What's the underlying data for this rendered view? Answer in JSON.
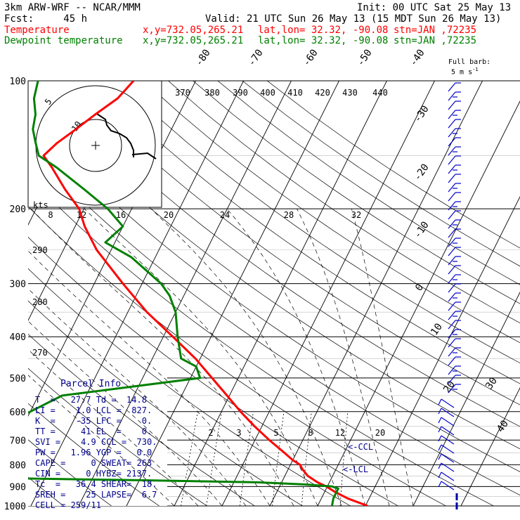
{
  "header": {
    "model": "3km ARW-WRF -- NCAR/MMM",
    "init": "Init: 00 UTC Sat 25 May 13",
    "fcst": "Fcst:     45 h",
    "valid": "Valid: 21 UTC Sun 26 May 13 (15 MDT Sun 26 May 13)",
    "temp_label": "Temperature",
    "dew_label": "Dewpoint temperature",
    "coord": "x,y=732.05,265.21",
    "latlon": "lat,lon= 32.32, -90.08",
    "stn": "stn=JAN ,72235",
    "barb_legend_1": "Full barb:",
    "barb_legend_2": "5 m s"
  },
  "colors": {
    "temperature": "#ff0000",
    "dewpoint": "#008000",
    "parcel_text": "#00008b",
    "barbs": "#0000cd",
    "grid": "#000000"
  },
  "chart_data": {
    "type": "skew-T log-P sounding",
    "pressure_levels": [
      100,
      200,
      300,
      400,
      500,
      600,
      700,
      800,
      900,
      1000
    ],
    "isotherm_labels": [
      "-80",
      "-70",
      "-60",
      "-50",
      "-40",
      "-30",
      "-20",
      "-10",
      "0",
      "10",
      "20",
      "30",
      "40"
    ],
    "theta_labels": [
      "370",
      "380",
      "390",
      "400",
      "410",
      "420",
      "430",
      "440"
    ],
    "theta_left_labels": [
      "290",
      "280",
      "270"
    ],
    "hodograph_speed_labels": [
      "8",
      "12",
      "16",
      "20",
      "24",
      "28",
      "32"
    ],
    "hodograph_unit": "kts",
    "hodograph_ring_labels": [
      "5",
      "10"
    ],
    "mixing_ratio_labels": [
      "2",
      "3",
      "5",
      "8",
      "12",
      "20"
    ],
    "ccl_label": "<-CCL",
    "lcl_label": "<-LCL",
    "series": [
      {
        "name": "Temperature",
        "p": [
          1000,
          960,
          925,
          900,
          880,
          850,
          820,
          800,
          780,
          750,
          700,
          650,
          600,
          550,
          500,
          450,
          400,
          350,
          300,
          250,
          220,
          200,
          180,
          160,
          150,
          140,
          130,
          120,
          110,
          100
        ],
        "t": [
          30.5,
          25.5,
          22.0,
          19.8,
          17.5,
          14.8,
          13.0,
          12.0,
          10.0,
          7.5,
          3.0,
          -1.5,
          -6.0,
          -10.5,
          -15.5,
          -21.0,
          -28.0,
          -36.0,
          -44.0,
          -53.0,
          -58.0,
          -61.0,
          -66.0,
          -71.0,
          -74.0,
          -72.5,
          -70.0,
          -67.5,
          -64.5,
          -63.0
        ]
      },
      {
        "name": "Dewpoint temperature",
        "p": [
          1000,
          960,
          925,
          910,
          900,
          890,
          880,
          870,
          860,
          850,
          820,
          800,
          780,
          750,
          700,
          650,
          600,
          550,
          500,
          470,
          450,
          400,
          350,
          320,
          300,
          260,
          240,
          220,
          200,
          180,
          160,
          150,
          140,
          130,
          120,
          110,
          100
        ],
        "t": [
          23.0,
          22.5,
          22.5,
          22.5,
          21.0,
          15.0,
          5.0,
          -20.0,
          -50.0,
          -58.0,
          -60.0,
          -70.0,
          -70.0,
          -65.0,
          -60.0,
          -55.0,
          -50.0,
          -45.0,
          -18.0,
          -20.0,
          -24.0,
          -27.0,
          -30.0,
          -33.0,
          -36.0,
          -45.0,
          -52.0,
          -50.0,
          -55.0,
          -62.0,
          -70.0,
          -75.0,
          -77.0,
          -79.0,
          -80.0,
          -82.0,
          -83.0
        ]
      }
    ]
  },
  "parcel_info": {
    "title": "Parcel Info",
    "rows": [
      "T  =   27.7 Td =  14.8",
      "LI =    1.0 LCL =  827.",
      "K  =    -35 LFC =    0.",
      "TT =     41 EL  =    0.",
      "SVI =    4.9 CCL =  730.",
      "PW =   1.96 YGP =   0.0",
      "CAPE =     0 SWEAT= 263",
      "CIN =     0 HYBZ= 2137.",
      "Tc  =   36.4 SHEAR=  18.",
      "SREH =    25 LAPSE=  6.7",
      "CELL = 259/11"
    ]
  }
}
